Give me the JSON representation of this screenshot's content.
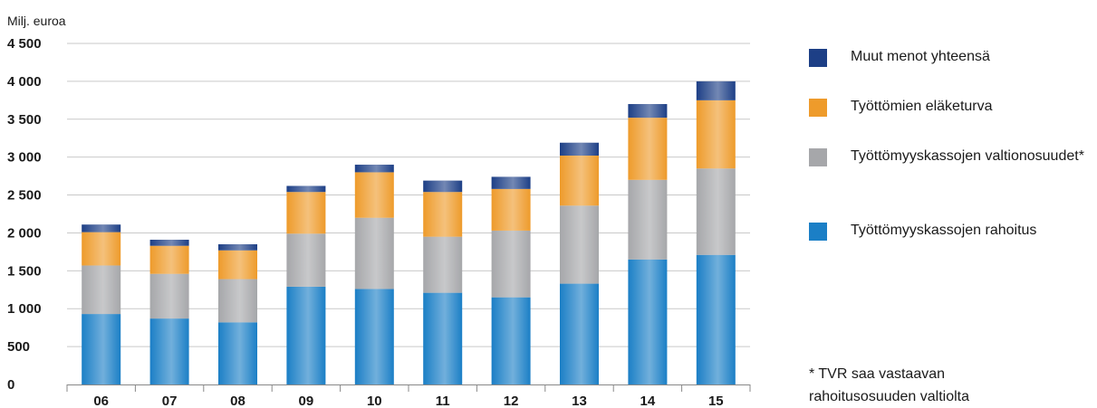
{
  "chart_data": {
    "type": "bar",
    "stacked": true,
    "unit_label": "Milj. euroa",
    "categories": [
      "06",
      "07",
      "08",
      "09",
      "10",
      "11",
      "12",
      "13",
      "14",
      "15"
    ],
    "series": [
      {
        "name": "Työttömyyskassojen rahoitus",
        "color": "#1b7fc6",
        "values": [
          930,
          870,
          820,
          1290,
          1260,
          1210,
          1150,
          1330,
          1650,
          1710
        ]
      },
      {
        "name": "Työttömyyskassojen valtionosuudet*",
        "color": "#a6a7aa",
        "values": [
          640,
          590,
          570,
          700,
          940,
          740,
          880,
          1030,
          1050,
          1140
        ]
      },
      {
        "name": "Työttömien eläketurva",
        "color": "#ee9b2b",
        "values": [
          440,
          370,
          380,
          550,
          600,
          590,
          550,
          660,
          820,
          900
        ]
      },
      {
        "name": "Muut menot yhteensä",
        "color": "#1d3f86",
        "values": [
          100,
          80,
          80,
          80,
          100,
          150,
          160,
          170,
          180,
          250
        ]
      }
    ],
    "ylim": [
      0,
      4500
    ],
    "yticks": [
      0,
      500,
      1000,
      1500,
      2000,
      2500,
      3000,
      3500,
      4000,
      4500
    ],
    "ytick_labels": [
      "0",
      "500",
      "1 000",
      "1 500",
      "2 000",
      "2 500",
      "3 000",
      "3 500",
      "4 000",
      "4 500"
    ],
    "grid": true,
    "legend_position": "right",
    "legend_order": [
      3,
      2,
      1,
      0
    ],
    "footnote_lines": [
      "* TVR saa vastaavan",
      "rahoitusosuuden valtiolta"
    ]
  }
}
